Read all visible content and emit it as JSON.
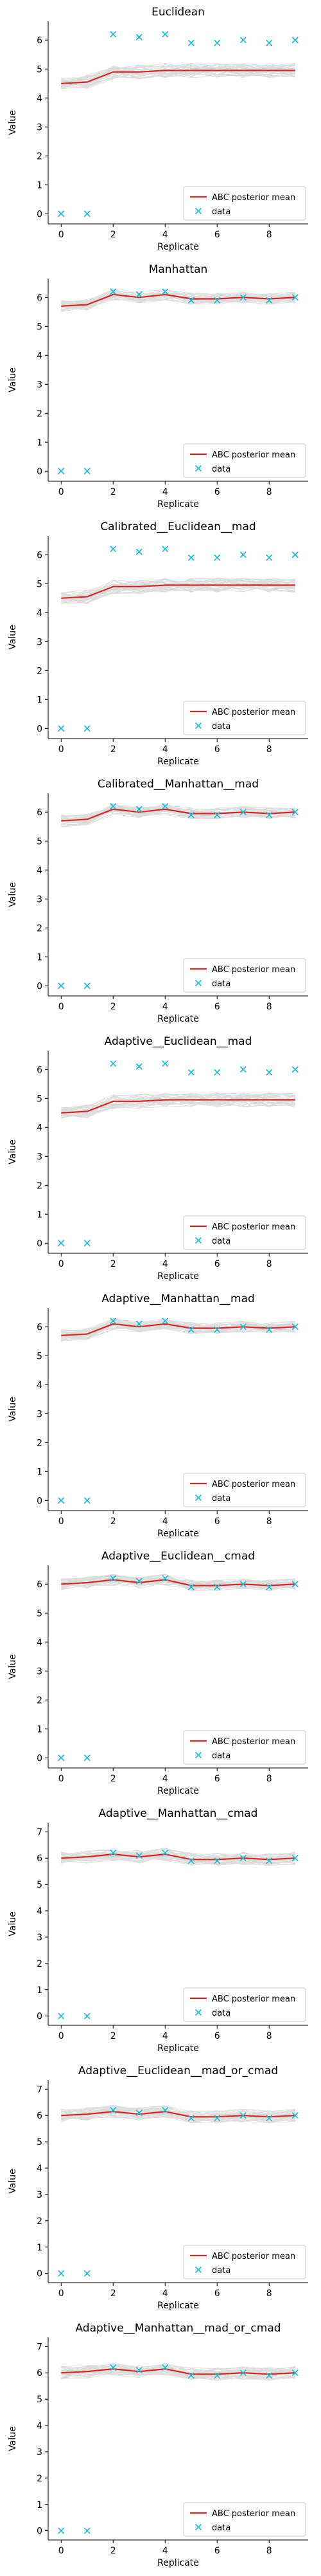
{
  "colors": {
    "mean_line": "#d62728",
    "data_marker": "#17becf",
    "samples": "#9e9e9e"
  },
  "legend": {
    "mean_label": "ABC posterior mean",
    "data_label": "data",
    "placement": "lower right"
  },
  "chart_data": [
    {
      "type": "line",
      "title": "Euclidean",
      "xlabel": "Replicate",
      "ylabel": "Value",
      "xlim": [
        -0.5,
        9.5
      ],
      "ylim": [
        -0.35,
        6.65
      ],
      "yticks": [
        0,
        1,
        2,
        3,
        4,
        5,
        6
      ],
      "xticks": [
        0,
        2,
        4,
        6,
        8
      ],
      "grid": false,
      "x": [
        0,
        1,
        2,
        3,
        4,
        5,
        6,
        7,
        8,
        9
      ],
      "series": [
        {
          "name": "ABC posterior mean",
          "values": [
            4.5,
            4.55,
            4.9,
            4.9,
            4.95,
            4.95,
            4.95,
            4.95,
            4.95,
            4.95
          ]
        },
        {
          "name": "data",
          "values": [
            0,
            0,
            6.2,
            6.1,
            6.2,
            5.9,
            5.9,
            6.0,
            5.9,
            6.0
          ]
        }
      ],
      "band": [
        0.2,
        0.25,
        0.25,
        0.25,
        0.25,
        0.25,
        0.25,
        0.25,
        0.25,
        0.25
      ]
    },
    {
      "type": "line",
      "title": "Manhattan",
      "xlabel": "Replicate",
      "ylabel": "Value",
      "xlim": [
        -0.5,
        9.5
      ],
      "ylim": [
        -0.35,
        6.65
      ],
      "yticks": [
        0,
        1,
        2,
        3,
        4,
        5,
        6
      ],
      "xticks": [
        0,
        2,
        4,
        6,
        8
      ],
      "grid": false,
      "x": [
        0,
        1,
        2,
        3,
        4,
        5,
        6,
        7,
        8,
        9
      ],
      "series": [
        {
          "name": "ABC posterior mean",
          "values": [
            5.7,
            5.75,
            6.1,
            6.0,
            6.1,
            5.95,
            5.95,
            6.0,
            5.95,
            6.0
          ]
        },
        {
          "name": "data",
          "values": [
            0,
            0,
            6.2,
            6.1,
            6.2,
            5.9,
            5.9,
            6.0,
            5.9,
            6.0
          ]
        }
      ],
      "band": [
        0.2,
        0.2,
        0.2,
        0.2,
        0.2,
        0.2,
        0.2,
        0.2,
        0.2,
        0.2
      ]
    },
    {
      "type": "line",
      "title": "Calibrated__Euclidean__mad",
      "xlabel": "Replicate",
      "ylabel": "Value",
      "xlim": [
        -0.5,
        9.5
      ],
      "ylim": [
        -0.35,
        6.65
      ],
      "yticks": [
        0,
        1,
        2,
        3,
        4,
        5,
        6
      ],
      "xticks": [
        0,
        2,
        4,
        6,
        8
      ],
      "grid": false,
      "x": [
        0,
        1,
        2,
        3,
        4,
        5,
        6,
        7,
        8,
        9
      ],
      "series": [
        {
          "name": "ABC posterior mean",
          "values": [
            4.5,
            4.55,
            4.9,
            4.9,
            4.95,
            4.95,
            4.95,
            4.95,
            4.95,
            4.95
          ]
        },
        {
          "name": "data",
          "values": [
            0,
            0,
            6.2,
            6.1,
            6.2,
            5.9,
            5.9,
            6.0,
            5.9,
            6.0
          ]
        }
      ],
      "band": [
        0.2,
        0.25,
        0.25,
        0.25,
        0.25,
        0.25,
        0.25,
        0.25,
        0.25,
        0.25
      ]
    },
    {
      "type": "line",
      "title": "Calibrated__Manhattan__mad",
      "xlabel": "Replicate",
      "ylabel": "Value",
      "xlim": [
        -0.5,
        9.5
      ],
      "ylim": [
        -0.35,
        6.65
      ],
      "yticks": [
        0,
        1,
        2,
        3,
        4,
        5,
        6
      ],
      "xticks": [
        0,
        2,
        4,
        6,
        8
      ],
      "grid": false,
      "x": [
        0,
        1,
        2,
        3,
        4,
        5,
        6,
        7,
        8,
        9
      ],
      "series": [
        {
          "name": "ABC posterior mean",
          "values": [
            5.7,
            5.75,
            6.1,
            6.0,
            6.1,
            5.95,
            5.95,
            6.0,
            5.95,
            6.0
          ]
        },
        {
          "name": "data",
          "values": [
            0,
            0,
            6.2,
            6.1,
            6.2,
            5.9,
            5.9,
            6.0,
            5.9,
            6.0
          ]
        }
      ],
      "band": [
        0.2,
        0.2,
        0.2,
        0.2,
        0.2,
        0.2,
        0.2,
        0.2,
        0.2,
        0.2
      ]
    },
    {
      "type": "line",
      "title": "Adaptive__Euclidean__mad",
      "xlabel": "Replicate",
      "ylabel": "Value",
      "xlim": [
        -0.5,
        9.5
      ],
      "ylim": [
        -0.35,
        6.65
      ],
      "yticks": [
        0,
        1,
        2,
        3,
        4,
        5,
        6
      ],
      "xticks": [
        0,
        2,
        4,
        6,
        8
      ],
      "grid": false,
      "x": [
        0,
        1,
        2,
        3,
        4,
        5,
        6,
        7,
        8,
        9
      ],
      "series": [
        {
          "name": "ABC posterior mean",
          "values": [
            4.5,
            4.55,
            4.9,
            4.9,
            4.95,
            4.95,
            4.95,
            4.95,
            4.95,
            4.95
          ]
        },
        {
          "name": "data",
          "values": [
            0,
            0,
            6.2,
            6.1,
            6.2,
            5.9,
            5.9,
            6.0,
            5.9,
            6.0
          ]
        }
      ],
      "band": [
        0.2,
        0.25,
        0.25,
        0.25,
        0.25,
        0.25,
        0.25,
        0.25,
        0.25,
        0.25
      ]
    },
    {
      "type": "line",
      "title": "Adaptive__Manhattan__mad",
      "xlabel": "Replicate",
      "ylabel": "Value",
      "xlim": [
        -0.5,
        9.5
      ],
      "ylim": [
        -0.35,
        6.65
      ],
      "yticks": [
        0,
        1,
        2,
        3,
        4,
        5,
        6
      ],
      "xticks": [
        0,
        2,
        4,
        6,
        8
      ],
      "grid": false,
      "x": [
        0,
        1,
        2,
        3,
        4,
        5,
        6,
        7,
        8,
        9
      ],
      "series": [
        {
          "name": "ABC posterior mean",
          "values": [
            5.7,
            5.75,
            6.1,
            6.0,
            6.1,
            5.95,
            5.95,
            6.0,
            5.95,
            6.0
          ]
        },
        {
          "name": "data",
          "values": [
            0,
            0,
            6.2,
            6.1,
            6.2,
            5.9,
            5.9,
            6.0,
            5.9,
            6.0
          ]
        }
      ],
      "band": [
        0.2,
        0.2,
        0.2,
        0.2,
        0.2,
        0.2,
        0.2,
        0.2,
        0.2,
        0.2
      ]
    },
    {
      "type": "line",
      "title": "Adaptive__Euclidean__cmad",
      "xlabel": "Replicate",
      "ylabel": "Value",
      "xlim": [
        -0.5,
        9.5
      ],
      "ylim": [
        -0.35,
        6.65
      ],
      "yticks": [
        0,
        1,
        2,
        3,
        4,
        5,
        6
      ],
      "xticks": [
        0,
        2,
        4,
        6,
        8
      ],
      "grid": false,
      "x": [
        0,
        1,
        2,
        3,
        4,
        5,
        6,
        7,
        8,
        9
      ],
      "series": [
        {
          "name": "ABC posterior mean",
          "values": [
            6.0,
            6.05,
            6.15,
            6.05,
            6.15,
            5.95,
            5.95,
            6.0,
            5.95,
            6.0
          ]
        },
        {
          "name": "data",
          "values": [
            0,
            0,
            6.2,
            6.1,
            6.2,
            5.9,
            5.9,
            6.0,
            5.9,
            6.0
          ]
        }
      ],
      "band": [
        0.2,
        0.2,
        0.2,
        0.2,
        0.2,
        0.2,
        0.2,
        0.2,
        0.2,
        0.2
      ]
    },
    {
      "type": "line",
      "title": "Adaptive__Manhattan__cmad",
      "xlabel": "Replicate",
      "ylabel": "Value",
      "xlim": [
        -0.5,
        9.5
      ],
      "ylim": [
        -0.35,
        7.35
      ],
      "yticks": [
        0,
        1,
        2,
        3,
        4,
        5,
        6,
        7
      ],
      "xticks": [
        0,
        2,
        4,
        6,
        8
      ],
      "grid": false,
      "x": [
        0,
        1,
        2,
        3,
        4,
        5,
        6,
        7,
        8,
        9
      ],
      "series": [
        {
          "name": "ABC posterior mean",
          "values": [
            6.0,
            6.05,
            6.15,
            6.05,
            6.15,
            5.95,
            5.95,
            6.0,
            5.95,
            6.0
          ]
        },
        {
          "name": "data",
          "values": [
            0,
            0,
            6.2,
            6.1,
            6.2,
            5.9,
            5.9,
            6.0,
            5.9,
            6.0
          ]
        }
      ],
      "band": [
        0.25,
        0.25,
        0.25,
        0.25,
        0.25,
        0.25,
        0.25,
        0.25,
        0.25,
        0.25
      ]
    },
    {
      "type": "line",
      "title": "Adaptive__Euclidean__mad_or_cmad",
      "xlabel": "Replicate",
      "ylabel": "Value",
      "xlim": [
        -0.5,
        9.5
      ],
      "ylim": [
        -0.35,
        7.35
      ],
      "yticks": [
        0,
        1,
        2,
        3,
        4,
        5,
        6,
        7
      ],
      "xticks": [
        0,
        2,
        4,
        6,
        8
      ],
      "grid": false,
      "x": [
        0,
        1,
        2,
        3,
        4,
        5,
        6,
        7,
        8,
        9
      ],
      "series": [
        {
          "name": "ABC posterior mean",
          "values": [
            6.0,
            6.05,
            6.15,
            6.05,
            6.15,
            5.95,
            5.95,
            6.0,
            5.95,
            6.0
          ]
        },
        {
          "name": "data",
          "values": [
            0,
            0,
            6.2,
            6.1,
            6.2,
            5.9,
            5.9,
            6.0,
            5.9,
            6.0
          ]
        }
      ],
      "band": [
        0.25,
        0.25,
        0.25,
        0.25,
        0.25,
        0.25,
        0.25,
        0.25,
        0.25,
        0.25
      ]
    },
    {
      "type": "line",
      "title": "Adaptive__Manhattan__mad_or_cmad",
      "xlabel": "Replicate",
      "ylabel": "Value",
      "xlim": [
        -0.5,
        9.5
      ],
      "ylim": [
        -0.35,
        7.35
      ],
      "yticks": [
        0,
        1,
        2,
        3,
        4,
        5,
        6,
        7
      ],
      "xticks": [
        0,
        2,
        4,
        6,
        8
      ],
      "grid": false,
      "x": [
        0,
        1,
        2,
        3,
        4,
        5,
        6,
        7,
        8,
        9
      ],
      "series": [
        {
          "name": "ABC posterior mean",
          "values": [
            6.0,
            6.05,
            6.15,
            6.05,
            6.15,
            5.95,
            5.95,
            6.0,
            5.95,
            6.0
          ]
        },
        {
          "name": "data",
          "values": [
            0,
            0,
            6.2,
            6.1,
            6.2,
            5.9,
            5.9,
            6.0,
            5.9,
            6.0
          ]
        }
      ],
      "band": [
        0.25,
        0.25,
        0.25,
        0.25,
        0.25,
        0.25,
        0.25,
        0.25,
        0.25,
        0.25
      ]
    }
  ]
}
